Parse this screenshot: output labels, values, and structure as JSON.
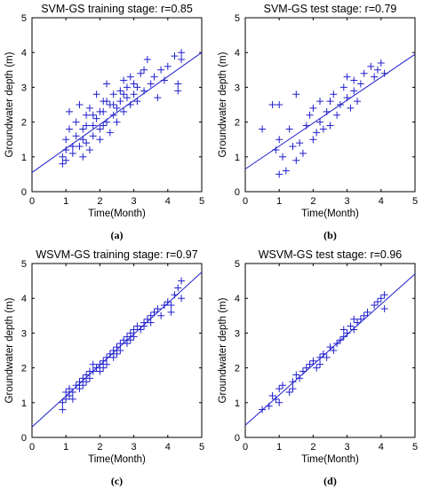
{
  "chart_data": [
    {
      "type": "scatter",
      "title": "SVM-GS training stage: r=0.85",
      "xlabel": "Time(Month)",
      "ylabel": "Groundwater depth (m)",
      "caption": "(a)",
      "xlim": [
        0,
        5
      ],
      "ylim": [
        0,
        5
      ],
      "xticks": [
        "0",
        "1",
        "2",
        "3",
        "4",
        "5"
      ],
      "yticks": [
        "0",
        "1",
        "2",
        "3",
        "4",
        "5"
      ],
      "color": "#1f1fcc",
      "fit_line": {
        "x": [
          0,
          5
        ],
        "y": [
          0.55,
          4.0
        ]
      },
      "points": [
        [
          0.9,
          0.8
        ],
        [
          0.9,
          1.0
        ],
        [
          1.0,
          1.2
        ],
        [
          1.0,
          1.5
        ],
        [
          1.0,
          0.9
        ],
        [
          1.1,
          1.8
        ],
        [
          1.1,
          2.3
        ],
        [
          1.2,
          1.1
        ],
        [
          1.3,
          1.6
        ],
        [
          1.3,
          2.0
        ],
        [
          1.4,
          1.3
        ],
        [
          1.4,
          2.5
        ],
        [
          1.5,
          1.0
        ],
        [
          1.5,
          1.8
        ],
        [
          1.6,
          2.2
        ],
        [
          1.6,
          1.4
        ],
        [
          1.7,
          1.2
        ],
        [
          1.7,
          2.4
        ],
        [
          1.8,
          1.9
        ],
        [
          1.8,
          1.6
        ],
        [
          1.9,
          2.1
        ],
        [
          1.9,
          2.8
        ],
        [
          2.0,
          1.5
        ],
        [
          2.0,
          2.3
        ],
        [
          2.0,
          1.8
        ],
        [
          2.1,
          2.6
        ],
        [
          2.1,
          1.9
        ],
        [
          2.2,
          3.1
        ],
        [
          2.2,
          2.0
        ],
        [
          2.3,
          1.7
        ],
        [
          2.3,
          2.5
        ],
        [
          2.4,
          2.2
        ],
        [
          2.4,
          2.8
        ],
        [
          2.5,
          2.4
        ],
        [
          2.5,
          2.0
        ],
        [
          2.6,
          2.9
        ],
        [
          2.6,
          2.6
        ],
        [
          2.7,
          2.3
        ],
        [
          2.7,
          3.2
        ],
        [
          2.8,
          2.7
        ],
        [
          2.8,
          3.0
        ],
        [
          2.9,
          2.5
        ],
        [
          3.0,
          2.8
        ],
        [
          3.0,
          3.1
        ],
        [
          3.1,
          2.6
        ],
        [
          3.2,
          3.4
        ],
        [
          3.3,
          2.9
        ],
        [
          3.4,
          3.8
        ],
        [
          3.5,
          3.1
        ],
        [
          3.6,
          3.3
        ],
        [
          3.7,
          2.7
        ],
        [
          3.8,
          3.5
        ],
        [
          3.9,
          3.2
        ],
        [
          4.0,
          3.6
        ],
        [
          4.2,
          3.9
        ],
        [
          4.3,
          3.1
        ],
        [
          4.3,
          2.9
        ],
        [
          4.4,
          4.0
        ],
        [
          4.4,
          3.8
        ],
        [
          1.2,
          1.3
        ],
        [
          1.5,
          1.5
        ],
        [
          1.8,
          2.2
        ],
        [
          2.1,
          2.3
        ],
        [
          2.4,
          2.5
        ],
        [
          2.7,
          2.8
        ],
        [
          3.1,
          3.0
        ],
        [
          1.6,
          1.9
        ],
        [
          2.2,
          2.6
        ],
        [
          2.9,
          3.3
        ],
        [
          3.3,
          3.5
        ]
      ]
    },
    {
      "type": "scatter",
      "title": "SVM-GS test stage: r=0.79",
      "xlabel": "Time(Month)",
      "ylabel": "Groundwater depth (m)",
      "caption": "(b)",
      "xlim": [
        0,
        5
      ],
      "ylim": [
        0,
        5
      ],
      "xticks": [
        "0",
        "1",
        "2",
        "3",
        "4",
        "5"
      ],
      "yticks": [
        "0",
        "1",
        "2",
        "3",
        "4",
        "5"
      ],
      "color": "#1f1fcc",
      "fit_line": {
        "x": [
          0,
          5
        ],
        "y": [
          0.65,
          3.95
        ]
      },
      "points": [
        [
          0.5,
          1.8
        ],
        [
          0.8,
          2.5
        ],
        [
          0.9,
          1.2
        ],
        [
          1.0,
          0.5
        ],
        [
          1.0,
          1.5
        ],
        [
          1.0,
          2.5
        ],
        [
          1.1,
          1.0
        ],
        [
          1.2,
          0.6
        ],
        [
          1.3,
          1.8
        ],
        [
          1.4,
          1.3
        ],
        [
          1.5,
          0.9
        ],
        [
          1.5,
          2.8
        ],
        [
          1.6,
          1.4
        ],
        [
          1.7,
          1.1
        ],
        [
          1.8,
          1.9
        ],
        [
          1.9,
          2.2
        ],
        [
          2.0,
          1.5
        ],
        [
          2.0,
          2.4
        ],
        [
          2.1,
          1.7
        ],
        [
          2.2,
          2.0
        ],
        [
          2.2,
          2.6
        ],
        [
          2.3,
          1.8
        ],
        [
          2.4,
          2.3
        ],
        [
          2.5,
          2.6
        ],
        [
          2.5,
          1.9
        ],
        [
          2.6,
          2.8
        ],
        [
          2.7,
          2.2
        ],
        [
          2.8,
          2.5
        ],
        [
          2.9,
          3.0
        ],
        [
          3.0,
          2.7
        ],
        [
          3.0,
          3.3
        ],
        [
          3.1,
          2.4
        ],
        [
          3.2,
          2.9
        ],
        [
          3.2,
          3.2
        ],
        [
          3.3,
          2.6
        ],
        [
          3.4,
          3.1
        ],
        [
          3.5,
          3.4
        ],
        [
          3.7,
          3.6
        ],
        [
          3.8,
          3.3
        ],
        [
          3.9,
          3.5
        ],
        [
          4.0,
          3.7
        ],
        [
          4.1,
          3.4
        ]
      ]
    },
    {
      "type": "scatter",
      "title": "WSVM-GS training stage: r=0.97",
      "xlabel": "Time(Month)",
      "ylabel": "Groundwater depth (m)",
      "caption": "(c)",
      "xlim": [
        0,
        5
      ],
      "ylim": [
        0,
        5
      ],
      "xticks": [
        "0",
        "1",
        "2",
        "3",
        "4",
        "5"
      ],
      "yticks": [
        "0",
        "1",
        "2",
        "3",
        "4",
        "5"
      ],
      "color": "#1f1fcc",
      "fit_line": {
        "x": [
          0,
          5
        ],
        "y": [
          0.3,
          4.75
        ]
      },
      "points": [
        [
          0.9,
          0.8
        ],
        [
          0.9,
          1.0
        ],
        [
          1.0,
          1.1
        ],
        [
          1.0,
          1.3
        ],
        [
          1.1,
          1.2
        ],
        [
          1.1,
          1.4
        ],
        [
          1.2,
          1.3
        ],
        [
          1.3,
          1.5
        ],
        [
          1.4,
          1.6
        ],
        [
          1.4,
          1.4
        ],
        [
          1.5,
          1.7
        ],
        [
          1.5,
          1.5
        ],
        [
          1.6,
          1.8
        ],
        [
          1.7,
          1.9
        ],
        [
          1.7,
          1.7
        ],
        [
          1.8,
          1.9
        ],
        [
          1.8,
          2.1
        ],
        [
          1.9,
          2.0
        ],
        [
          2.0,
          2.1
        ],
        [
          2.0,
          1.9
        ],
        [
          2.1,
          2.2
        ],
        [
          2.2,
          2.3
        ],
        [
          2.2,
          2.1
        ],
        [
          2.3,
          2.4
        ],
        [
          2.4,
          2.3
        ],
        [
          2.4,
          2.5
        ],
        [
          2.5,
          2.6
        ],
        [
          2.6,
          2.5
        ],
        [
          2.6,
          2.7
        ],
        [
          2.7,
          2.8
        ],
        [
          2.8,
          2.7
        ],
        [
          2.8,
          2.9
        ],
        [
          2.9,
          3.0
        ],
        [
          3.0,
          2.9
        ],
        [
          3.0,
          3.1
        ],
        [
          3.1,
          3.2
        ],
        [
          3.2,
          3.1
        ],
        [
          3.3,
          3.3
        ],
        [
          3.4,
          3.4
        ],
        [
          3.5,
          3.5
        ],
        [
          3.5,
          3.3
        ],
        [
          3.6,
          3.6
        ],
        [
          3.7,
          3.7
        ],
        [
          3.8,
          3.5
        ],
        [
          3.9,
          3.8
        ],
        [
          4.0,
          3.9
        ],
        [
          4.1,
          3.6
        ],
        [
          4.2,
          4.1
        ],
        [
          4.3,
          4.3
        ],
        [
          4.4,
          4.5
        ],
        [
          4.4,
          4.0
        ],
        [
          4.1,
          3.8
        ],
        [
          1.2,
          1.1
        ],
        [
          1.6,
          1.6
        ],
        [
          2.1,
          2.0
        ],
        [
          2.5,
          2.4
        ],
        [
          2.9,
          2.8
        ],
        [
          3.3,
          3.2
        ]
      ]
    },
    {
      "type": "scatter",
      "title": "WSVM-GS test stage: r=0.96",
      "xlabel": "Time(Month)",
      "ylabel": "Groundwater depth (m)",
      "caption": "(d)",
      "xlim": [
        0,
        5
      ],
      "ylim": [
        0,
        5
      ],
      "xticks": [
        "0",
        "1",
        "2",
        "3",
        "4",
        "5"
      ],
      "yticks": [
        "0",
        "1",
        "2",
        "3",
        "4",
        "5"
      ],
      "color": "#1f1fcc",
      "fit_line": {
        "x": [
          0,
          5
        ],
        "y": [
          0.35,
          4.7
        ]
      },
      "points": [
        [
          0.5,
          0.8
        ],
        [
          0.7,
          0.9
        ],
        [
          0.8,
          1.2
        ],
        [
          0.9,
          1.1
        ],
        [
          1.0,
          1.4
        ],
        [
          1.0,
          1.0
        ],
        [
          1.1,
          1.5
        ],
        [
          1.3,
          1.3
        ],
        [
          1.4,
          1.6
        ],
        [
          1.5,
          1.8
        ],
        [
          1.6,
          1.7
        ],
        [
          1.7,
          1.9
        ],
        [
          1.8,
          2.0
        ],
        [
          1.9,
          2.1
        ],
        [
          2.0,
          2.2
        ],
        [
          2.1,
          2.0
        ],
        [
          2.2,
          2.3
        ],
        [
          2.3,
          2.4
        ],
        [
          2.4,
          2.3
        ],
        [
          2.5,
          2.6
        ],
        [
          2.6,
          2.5
        ],
        [
          2.7,
          2.7
        ],
        [
          2.8,
          2.8
        ],
        [
          2.9,
          2.9
        ],
        [
          3.0,
          3.0
        ],
        [
          3.1,
          3.2
        ],
        [
          3.2,
          3.1
        ],
        [
          3.3,
          3.3
        ],
        [
          3.4,
          3.4
        ],
        [
          3.5,
          3.5
        ],
        [
          3.6,
          3.6
        ],
        [
          3.8,
          3.8
        ],
        [
          3.9,
          3.9
        ],
        [
          4.0,
          4.0
        ],
        [
          4.1,
          4.1
        ],
        [
          4.1,
          3.7
        ],
        [
          1.4,
          1.4
        ],
        [
          2.2,
          2.1
        ],
        [
          2.9,
          3.1
        ],
        [
          3.2,
          3.4
        ]
      ]
    }
  ]
}
